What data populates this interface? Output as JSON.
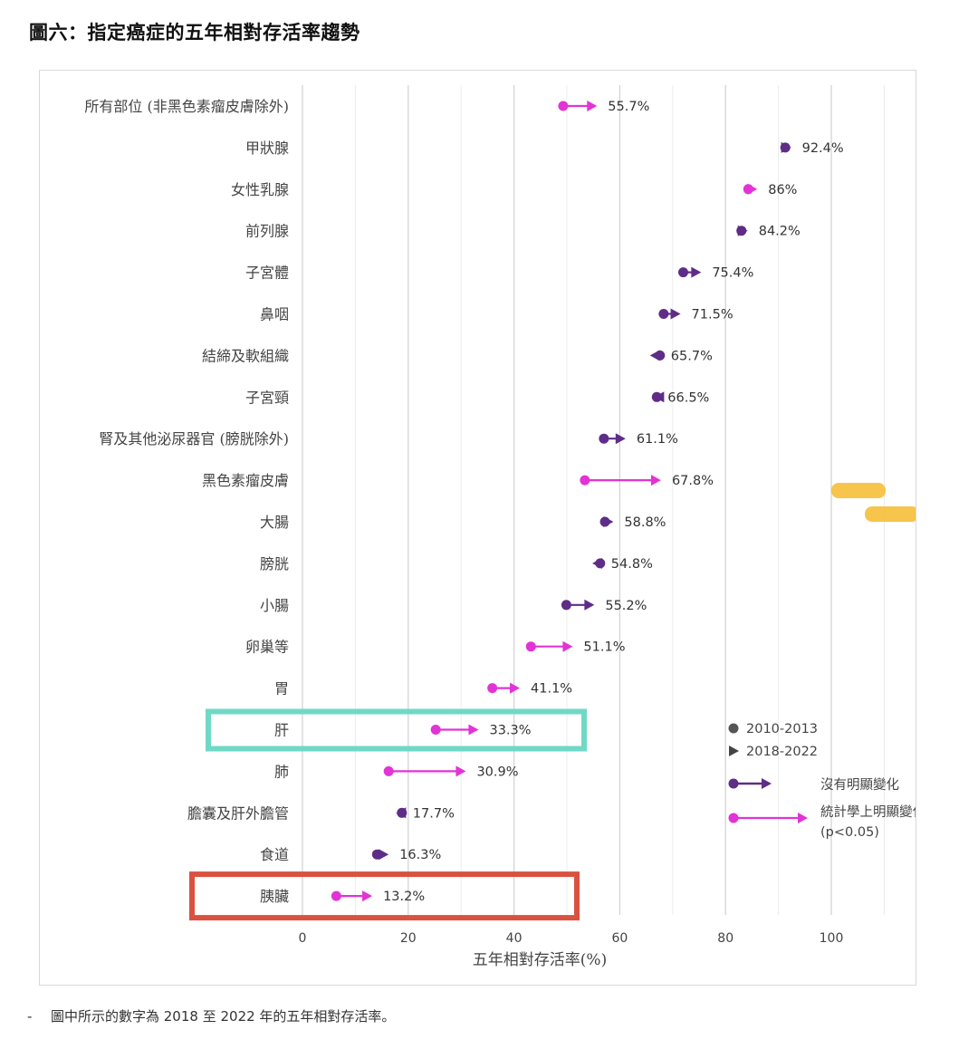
{
  "title": "圖六：指定癌症的五年相對存活率趨勢",
  "footnote": "圖中所示的數字為 2018 至 2022 年的五年相對存活率。",
  "footnote_bullet": "-",
  "colors": {
    "significant": "#e233d6",
    "not_significant": "#5e2d87",
    "highlight_teal": "#6fd9c6",
    "highlight_red": "#d9523f",
    "highlighter_yellow": "#f6bb2c",
    "grid": "#dcdcdc"
  },
  "legend": {
    "period_a": "2010-2013",
    "period_b": "2018-2022",
    "not_significant": "沒有明顯變化",
    "significant": "統計學上明顯變化",
    "significant_note": "(p<0.05)"
  },
  "chart_data": {
    "type": "dumbbell",
    "xlabel": "五年相對存活率(%)",
    "xlim": [
      0,
      100
    ],
    "xticks": [
      0,
      20,
      40,
      60,
      80,
      100
    ],
    "grid": true,
    "legend_position": "right",
    "series_names": [
      "2010-2013",
      "2018-2022"
    ],
    "items": [
      {
        "category": "所有部位 (非黑色素瘤皮膚除外)",
        "start": 49.3,
        "end": 55.7,
        "label": "55.7%",
        "significant": true,
        "highlight": null
      },
      {
        "category": "甲狀腺",
        "start": 91.3,
        "end": 92.4,
        "label": "92.4%",
        "significant": false,
        "highlight": null
      },
      {
        "category": "女性乳腺",
        "start": 84.3,
        "end": 86.0,
        "label": "86%",
        "significant": true,
        "highlight": null
      },
      {
        "category": "前列腺",
        "start": 83.0,
        "end": 84.2,
        "label": "84.2%",
        "significant": false,
        "highlight": null
      },
      {
        "category": "子宮體",
        "start": 72.0,
        "end": 75.4,
        "label": "75.4%",
        "significant": false,
        "highlight": null
      },
      {
        "category": "鼻咽",
        "start": 68.3,
        "end": 71.5,
        "label": "71.5%",
        "significant": false,
        "highlight": null
      },
      {
        "category": "結締及軟組織",
        "start": 67.6,
        "end": 65.7,
        "label": "65.7%",
        "significant": false,
        "highlight": null
      },
      {
        "category": "子宮頸",
        "start": 67.0,
        "end": 66.5,
        "label": "66.5%",
        "significant": false,
        "highlight": null
      },
      {
        "category": "腎及其他泌尿器官 (膀胱除外)",
        "start": 57.0,
        "end": 61.1,
        "label": "61.1%",
        "significant": false,
        "highlight": null
      },
      {
        "category": "黑色素瘤皮膚",
        "start": 53.4,
        "end": 67.8,
        "label": "67.8%",
        "significant": true,
        "highlight": null
      },
      {
        "category": "大腸",
        "start": 57.2,
        "end": 58.8,
        "label": "58.8%",
        "significant": false,
        "highlight": null
      },
      {
        "category": "膀胱",
        "start": 56.3,
        "end": 54.8,
        "label": "54.8%",
        "significant": false,
        "highlight": null
      },
      {
        "category": "小腸",
        "start": 49.9,
        "end": 55.2,
        "label": "55.2%",
        "significant": false,
        "highlight": null
      },
      {
        "category": "卵巢等",
        "start": 43.2,
        "end": 51.1,
        "label": "51.1%",
        "significant": true,
        "highlight": null
      },
      {
        "category": "胃",
        "start": 35.9,
        "end": 41.1,
        "label": "41.1%",
        "significant": true,
        "highlight": null
      },
      {
        "category": "肝",
        "start": 25.2,
        "end": 33.3,
        "label": "33.3%",
        "significant": true,
        "highlight": "teal"
      },
      {
        "category": "肺",
        "start": 16.3,
        "end": 30.9,
        "label": "30.9%",
        "significant": true,
        "highlight": null
      },
      {
        "category": "膽囊及肝外膽管",
        "start": 18.8,
        "end": 17.7,
        "label": "17.7%",
        "significant": false,
        "highlight": null
      },
      {
        "category": "食道",
        "start": 14.1,
        "end": 16.3,
        "label": "16.3%",
        "significant": false,
        "highlight": null
      },
      {
        "category": "胰臟",
        "start": 6.4,
        "end": 13.2,
        "label": "13.2%",
        "significant": true,
        "highlight": "red"
      }
    ]
  }
}
